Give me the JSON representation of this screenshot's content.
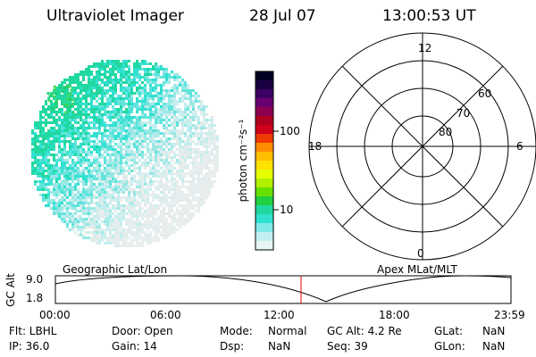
{
  "header": {
    "title": "Ultraviolet Imager",
    "date": "28 Jul 07",
    "time": "13:00:53 UT"
  },
  "colorbar": {
    "unit_label": "photon cm⁻²s⁻¹",
    "ticks": [
      "100",
      "10"
    ],
    "colors": [
      "#000022",
      "#1a0040",
      "#3d0064",
      "#6a0070",
      "#8c0050",
      "#b00020",
      "#d0001a",
      "#ef3a00",
      "#ff8c00",
      "#ffbe00",
      "#ffe200",
      "#e6ff00",
      "#b0f000",
      "#66e000",
      "#20d040",
      "#20d8a0",
      "#30e0d0",
      "#80eae8",
      "#c0f0f0",
      "#e6f4f4"
    ]
  },
  "polar": {
    "labels": [
      "12",
      "18",
      "6",
      "0",
      "60",
      "70",
      "80"
    ]
  },
  "bottom": {
    "left_title": "Geographic Lat/Lon",
    "right_title": "Apex MLat/MLT",
    "ylabel": "GC Alt",
    "yticks": [
      "9.0",
      "1.8"
    ],
    "xticks": [
      "00:00",
      "06:00",
      "12:00",
      "18:00",
      "23:59"
    ]
  },
  "status": {
    "flt": "Flt: LBHL",
    "door": "Door: Open",
    "mode_label": "Mode:",
    "mode_value": "Normal",
    "gcalt": "GC Alt: 4.2 Re",
    "glat_label": "GLat:",
    "glat_value": "NaN",
    "ip": "IP: 36.0",
    "gain": "Gain: 14",
    "dsp_label": "Dsp:",
    "dsp_value": "NaN",
    "seq": "Seq: 39",
    "glon_label": "GLon:",
    "glon_value": "NaN"
  }
}
